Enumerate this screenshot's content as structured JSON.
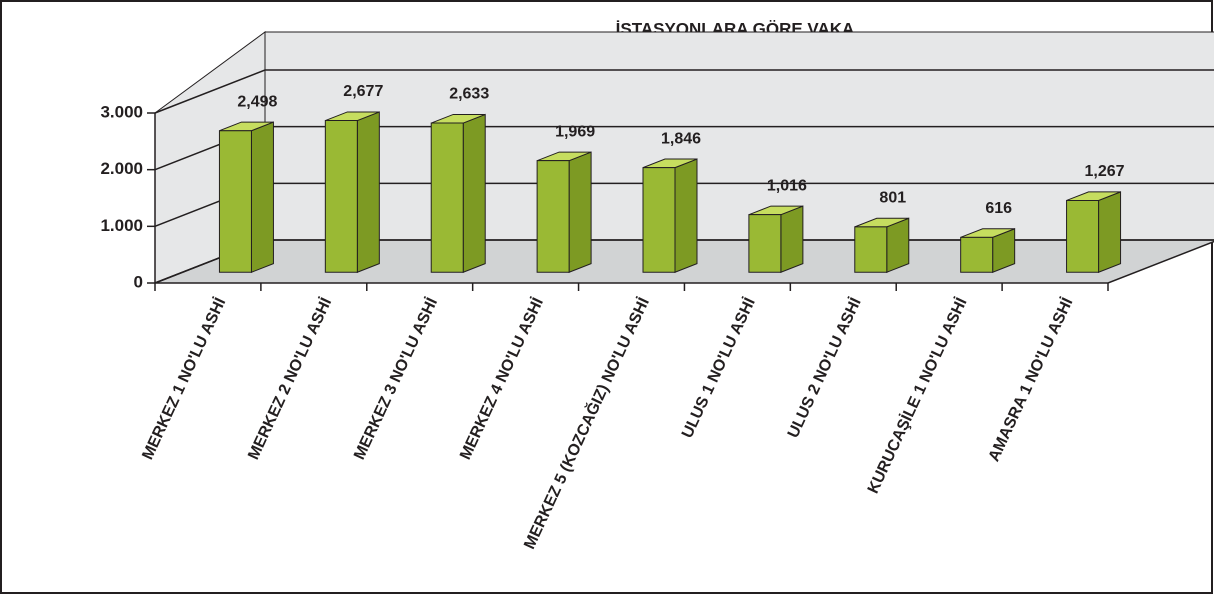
{
  "chart_data": {
    "type": "bar3d",
    "title": "İSTASYONLARA GÖRE VAKA",
    "categories": [
      "MERKEZ 1 NO'LU ASHİ",
      "MERKEZ 2 NO'LU ASHİ",
      "MERKEZ 3 NO'LU ASHİ",
      "MERKEZ 4 NO'LU ASHİ",
      "MERKEZ 5 (KOZCAĞIZ) NO'LU ASHİ",
      "ULUS 1 NO'LU ASHİ",
      "ULUS 2 NO'LU ASHİ",
      "KURUCAŞİLE 1 NO'LU ASHİ",
      "AMASRA 1 NO'LU ASHİ"
    ],
    "values": [
      2498,
      2677,
      2633,
      1969,
      1846,
      1016,
      801,
      616,
      1267
    ],
    "value_labels": [
      "2,498",
      "2,677",
      "2,633",
      "1,969",
      "1,846",
      "1,016",
      "801",
      "616",
      "1,267"
    ],
    "color": "#9ab934",
    "ylim": [
      0,
      3000
    ],
    "yticks": [
      0,
      {
        "value": 1000,
        "label": "1.000"
      },
      {
        "value": 2000,
        "label": "2.000"
      },
      {
        "value": 3000,
        "label": "3.000"
      }
    ],
    "grid": true
  }
}
